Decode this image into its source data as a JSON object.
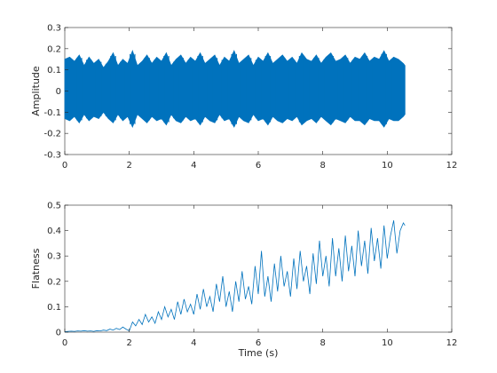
{
  "chart_data": [
    {
      "type": "line",
      "ylabel": "Amplitude",
      "xlabel": "",
      "xlim": [
        0,
        12
      ],
      "ylim": [
        -0.3,
        0.3
      ],
      "xticks": [
        "0",
        "2",
        "4",
        "6",
        "8",
        "10",
        "12"
      ],
      "yticks": [
        "-0.3",
        "-0.2",
        "-0.1",
        "0",
        "0.1",
        "0.2",
        "0.3"
      ],
      "series": [
        {
          "color": "#0072BD",
          "x": [
            0.0,
            0.15,
            0.3,
            0.45,
            0.6,
            0.75,
            0.9,
            1.05,
            1.2,
            1.35,
            1.5,
            1.65,
            1.8,
            1.95,
            2.1,
            2.25,
            2.4,
            2.55,
            2.7,
            2.85,
            3.0,
            3.15,
            3.3,
            3.45,
            3.6,
            3.75,
            3.9,
            4.05,
            4.2,
            4.35,
            4.5,
            4.65,
            4.8,
            4.95,
            5.1,
            5.25,
            5.4,
            5.55,
            5.7,
            5.85,
            6.0,
            6.15,
            6.3,
            6.45,
            6.6,
            6.75,
            6.9,
            7.05,
            7.2,
            7.35,
            7.5,
            7.65,
            7.8,
            7.95,
            8.1,
            8.25,
            8.4,
            8.55,
            8.7,
            8.85,
            9.0,
            9.15,
            9.3,
            9.45,
            9.6,
            9.75,
            9.9,
            10.05,
            10.2,
            10.35,
            10.5,
            10.55
          ],
          "upper": [
            0.15,
            0.16,
            0.14,
            0.17,
            0.12,
            0.16,
            0.13,
            0.15,
            0.11,
            0.14,
            0.18,
            0.12,
            0.15,
            0.13,
            0.19,
            0.12,
            0.14,
            0.17,
            0.13,
            0.16,
            0.14,
            0.18,
            0.12,
            0.15,
            0.17,
            0.13,
            0.16,
            0.14,
            0.18,
            0.13,
            0.15,
            0.17,
            0.12,
            0.16,
            0.14,
            0.19,
            0.13,
            0.15,
            0.17,
            0.12,
            0.16,
            0.14,
            0.18,
            0.13,
            0.15,
            0.17,
            0.14,
            0.16,
            0.13,
            0.18,
            0.15,
            0.14,
            0.17,
            0.13,
            0.16,
            0.18,
            0.14,
            0.15,
            0.17,
            0.13,
            0.16,
            0.15,
            0.18,
            0.14,
            0.16,
            0.15,
            0.19,
            0.14,
            0.16,
            0.15,
            0.13,
            0.12
          ],
          "lower": [
            -0.13,
            -0.14,
            -0.12,
            -0.15,
            -0.11,
            -0.14,
            -0.12,
            -0.13,
            -0.1,
            -0.13,
            -0.15,
            -0.11,
            -0.14,
            -0.12,
            -0.17,
            -0.11,
            -0.13,
            -0.15,
            -0.12,
            -0.14,
            -0.13,
            -0.16,
            -0.11,
            -0.14,
            -0.15,
            -0.12,
            -0.14,
            -0.13,
            -0.16,
            -0.12,
            -0.14,
            -0.15,
            -0.11,
            -0.14,
            -0.13,
            -0.17,
            -0.12,
            -0.14,
            -0.15,
            -0.11,
            -0.14,
            -0.13,
            -0.16,
            -0.12,
            -0.14,
            -0.15,
            -0.13,
            -0.14,
            -0.12,
            -0.16,
            -0.14,
            -0.13,
            -0.15,
            -0.12,
            -0.14,
            -0.16,
            -0.13,
            -0.14,
            -0.15,
            -0.12,
            -0.14,
            -0.14,
            -0.16,
            -0.13,
            -0.14,
            -0.14,
            -0.17,
            -0.13,
            -0.14,
            -0.14,
            -0.12,
            -0.11
          ]
        }
      ]
    },
    {
      "type": "line",
      "ylabel": "Flatness",
      "xlabel": "Time (s)",
      "xlim": [
        0,
        12
      ],
      "ylim": [
        0,
        0.5
      ],
      "xticks": [
        "0",
        "2",
        "4",
        "6",
        "8",
        "10",
        "12"
      ],
      "yticks": [
        "0",
        "0.1",
        "0.2",
        "0.3",
        "0.4",
        "0.5"
      ],
      "series": [
        {
          "color": "#0072BD",
          "x": [
            0.0,
            0.1,
            0.2,
            0.3,
            0.4,
            0.5,
            0.6,
            0.7,
            0.8,
            0.9,
            1.0,
            1.1,
            1.2,
            1.3,
            1.4,
            1.5,
            1.6,
            1.7,
            1.8,
            1.9,
            2.0,
            2.1,
            2.2,
            2.3,
            2.4,
            2.5,
            2.6,
            2.7,
            2.8,
            2.9,
            3.0,
            3.1,
            3.2,
            3.3,
            3.4,
            3.5,
            3.6,
            3.7,
            3.8,
            3.9,
            4.0,
            4.1,
            4.2,
            4.3,
            4.4,
            4.5,
            4.6,
            4.7,
            4.8,
            4.9,
            5.0,
            5.1,
            5.2,
            5.3,
            5.4,
            5.5,
            5.6,
            5.7,
            5.8,
            5.9,
            6.0,
            6.1,
            6.2,
            6.3,
            6.4,
            6.5,
            6.6,
            6.7,
            6.8,
            6.9,
            7.0,
            7.1,
            7.2,
            7.3,
            7.4,
            7.5,
            7.6,
            7.7,
            7.8,
            7.9,
            8.0,
            8.1,
            8.2,
            8.3,
            8.4,
            8.5,
            8.6,
            8.7,
            8.8,
            8.9,
            9.0,
            9.1,
            9.2,
            9.3,
            9.4,
            9.5,
            9.6,
            9.7,
            9.8,
            9.9,
            10.0,
            10.1,
            10.2,
            10.3,
            10.4,
            10.5,
            10.55
          ],
          "y": [
            0.002,
            0.003,
            0.004,
            0.003,
            0.005,
            0.004,
            0.006,
            0.004,
            0.005,
            0.003,
            0.006,
            0.005,
            0.008,
            0.006,
            0.012,
            0.008,
            0.015,
            0.01,
            0.02,
            0.012,
            0.005,
            0.04,
            0.025,
            0.05,
            0.03,
            0.07,
            0.04,
            0.06,
            0.035,
            0.08,
            0.05,
            0.1,
            0.06,
            0.09,
            0.05,
            0.12,
            0.07,
            0.13,
            0.08,
            0.11,
            0.07,
            0.15,
            0.09,
            0.17,
            0.1,
            0.14,
            0.08,
            0.19,
            0.12,
            0.22,
            0.1,
            0.16,
            0.08,
            0.2,
            0.12,
            0.24,
            0.13,
            0.18,
            0.11,
            0.26,
            0.15,
            0.32,
            0.14,
            0.22,
            0.12,
            0.27,
            0.16,
            0.3,
            0.18,
            0.24,
            0.14,
            0.29,
            0.17,
            0.32,
            0.2,
            0.26,
            0.15,
            0.31,
            0.19,
            0.36,
            0.22,
            0.3,
            0.18,
            0.37,
            0.22,
            0.33,
            0.2,
            0.38,
            0.24,
            0.34,
            0.22,
            0.4,
            0.26,
            0.36,
            0.23,
            0.41,
            0.28,
            0.37,
            0.25,
            0.42,
            0.29,
            0.38,
            0.44,
            0.31,
            0.4,
            0.43,
            0.42
          ]
        }
      ]
    }
  ]
}
